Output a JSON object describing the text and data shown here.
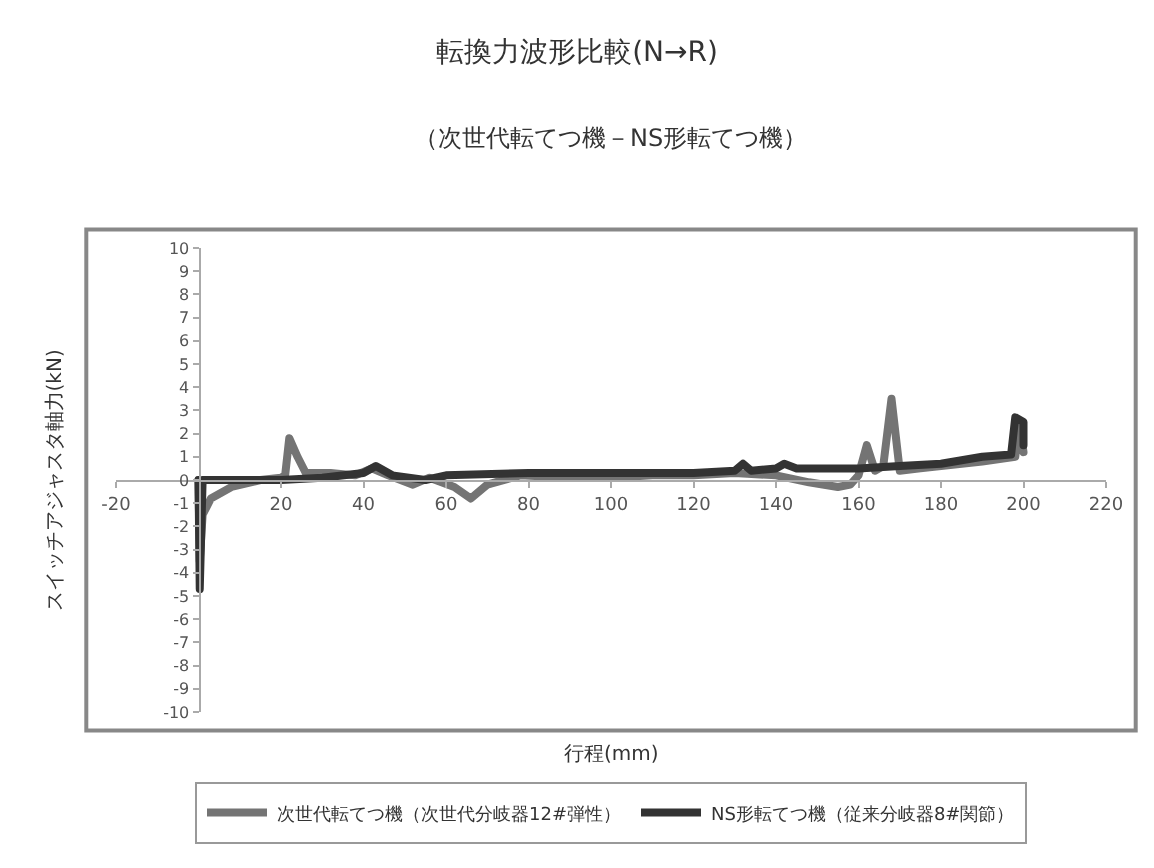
{
  "chart_data": {
    "type": "line",
    "title": "転換力波形比較(N→R)",
    "subtitle": "（次世代転てつ機－NS形転てつ機）",
    "xlabel": "行程(mm)",
    "ylabel": "スイッチアジャスタ軸力(kN)",
    "xlim": [
      -20,
      220
    ],
    "xticks": [
      -20,
      20,
      40,
      60,
      80,
      100,
      120,
      140,
      160,
      180,
      200,
      220
    ],
    "ylim": [
      -10,
      10
    ],
    "yticks": [
      -10,
      -9,
      -8,
      -7,
      -6,
      -5,
      -4,
      -3,
      -2,
      -1,
      0,
      1,
      2,
      3,
      4,
      5,
      6,
      7,
      8,
      9,
      10
    ],
    "legend": "bottom",
    "series": [
      {
        "name": "次世代転てつ機（次世代分岐器12#弾性）",
        "color": "#747474",
        "x": [
          0,
          0.3,
          1,
          3,
          8,
          15,
          20,
          21,
          22,
          24,
          26,
          32,
          38,
          42,
          46,
          52,
          56,
          62,
          66,
          70,
          78,
          90,
          100,
          110,
          120,
          130,
          140,
          148,
          155,
          158,
          160,
          162,
          164,
          166,
          168,
          170,
          175,
          180,
          190,
          198,
          199,
          200
        ],
        "values": [
          0,
          -3.5,
          -1.5,
          -0.8,
          -0.3,
          0,
          0.1,
          0.2,
          1.8,
          1,
          0.3,
          0.3,
          0.2,
          0.5,
          0.2,
          -0.2,
          0.1,
          -0.3,
          -0.8,
          -0.2,
          0.2,
          0.1,
          0.1,
          0.2,
          0.2,
          0.3,
          0.2,
          -0.1,
          -0.3,
          -0.2,
          0.2,
          1.5,
          0.4,
          0.6,
          3.5,
          0.4,
          0.5,
          0.6,
          0.8,
          1,
          2.5,
          1.2
        ]
      },
      {
        "name": "NS形転てつ機（従来分岐器8#関節）",
        "color": "#333333",
        "x": [
          0,
          0.3,
          1,
          10,
          20,
          30,
          40,
          43,
          47,
          55,
          60,
          80,
          100,
          120,
          130,
          132,
          134,
          140,
          142,
          145,
          160,
          170,
          180,
          190,
          197,
          198,
          200,
          200
        ],
        "values": [
          0,
          -4.7,
          0,
          0,
          0,
          0.1,
          0.3,
          0.6,
          0.2,
          0,
          0.2,
          0.3,
          0.3,
          0.3,
          0.4,
          0.7,
          0.4,
          0.5,
          0.7,
          0.5,
          0.5,
          0.6,
          0.7,
          1,
          1.1,
          2.7,
          2.5,
          1.5
        ]
      }
    ]
  }
}
